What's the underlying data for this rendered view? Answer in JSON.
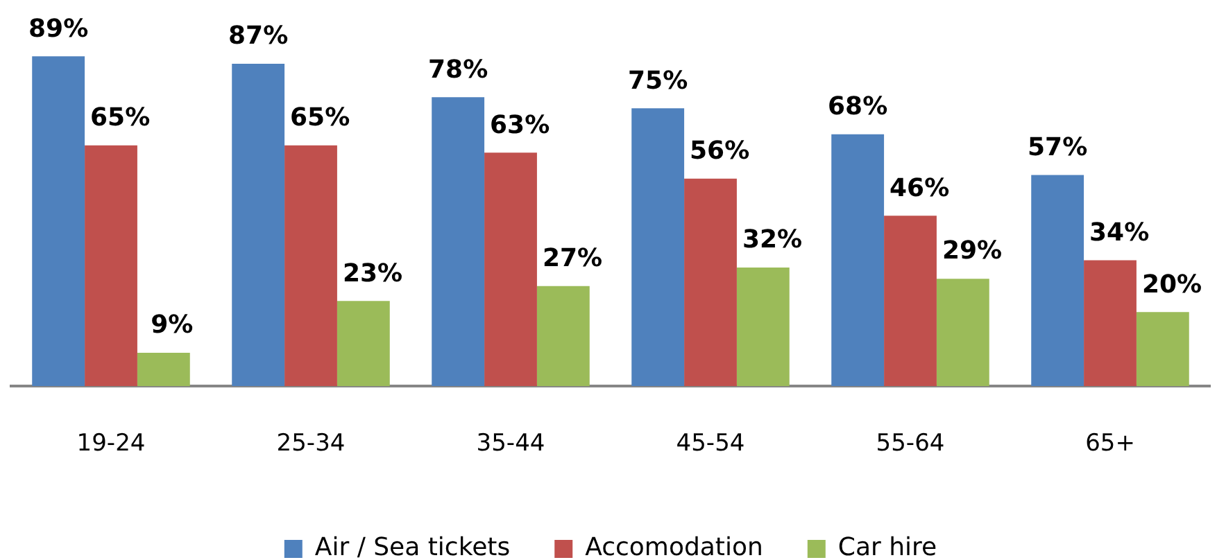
{
  "chart_data": {
    "type": "bar",
    "categories": [
      "19-24",
      "25-34",
      "35-44",
      "45-54",
      "55-64",
      "65+"
    ],
    "series": [
      {
        "name": "Air / Sea tickets",
        "color": "#4f81bd",
        "values": [
          89,
          87,
          78,
          75,
          68,
          57
        ],
        "value_labels": [
          "89%",
          "87%",
          "78%",
          "75%",
          "68%",
          "57%"
        ]
      },
      {
        "name": "Accomodation",
        "color": "#c0504d",
        "values": [
          65,
          65,
          63,
          56,
          46,
          34
        ],
        "value_labels": [
          "65%",
          "65%",
          "63%",
          "56%",
          "46%",
          "34%"
        ]
      },
      {
        "name": "Car hire",
        "color": "#9bbb59",
        "values": [
          9,
          23,
          27,
          32,
          29,
          20
        ],
        "value_labels": [
          "9%",
          "23%",
          "27%",
          "32%",
          "29%",
          "20%"
        ]
      }
    ],
    "legend": "bottom"
  }
}
